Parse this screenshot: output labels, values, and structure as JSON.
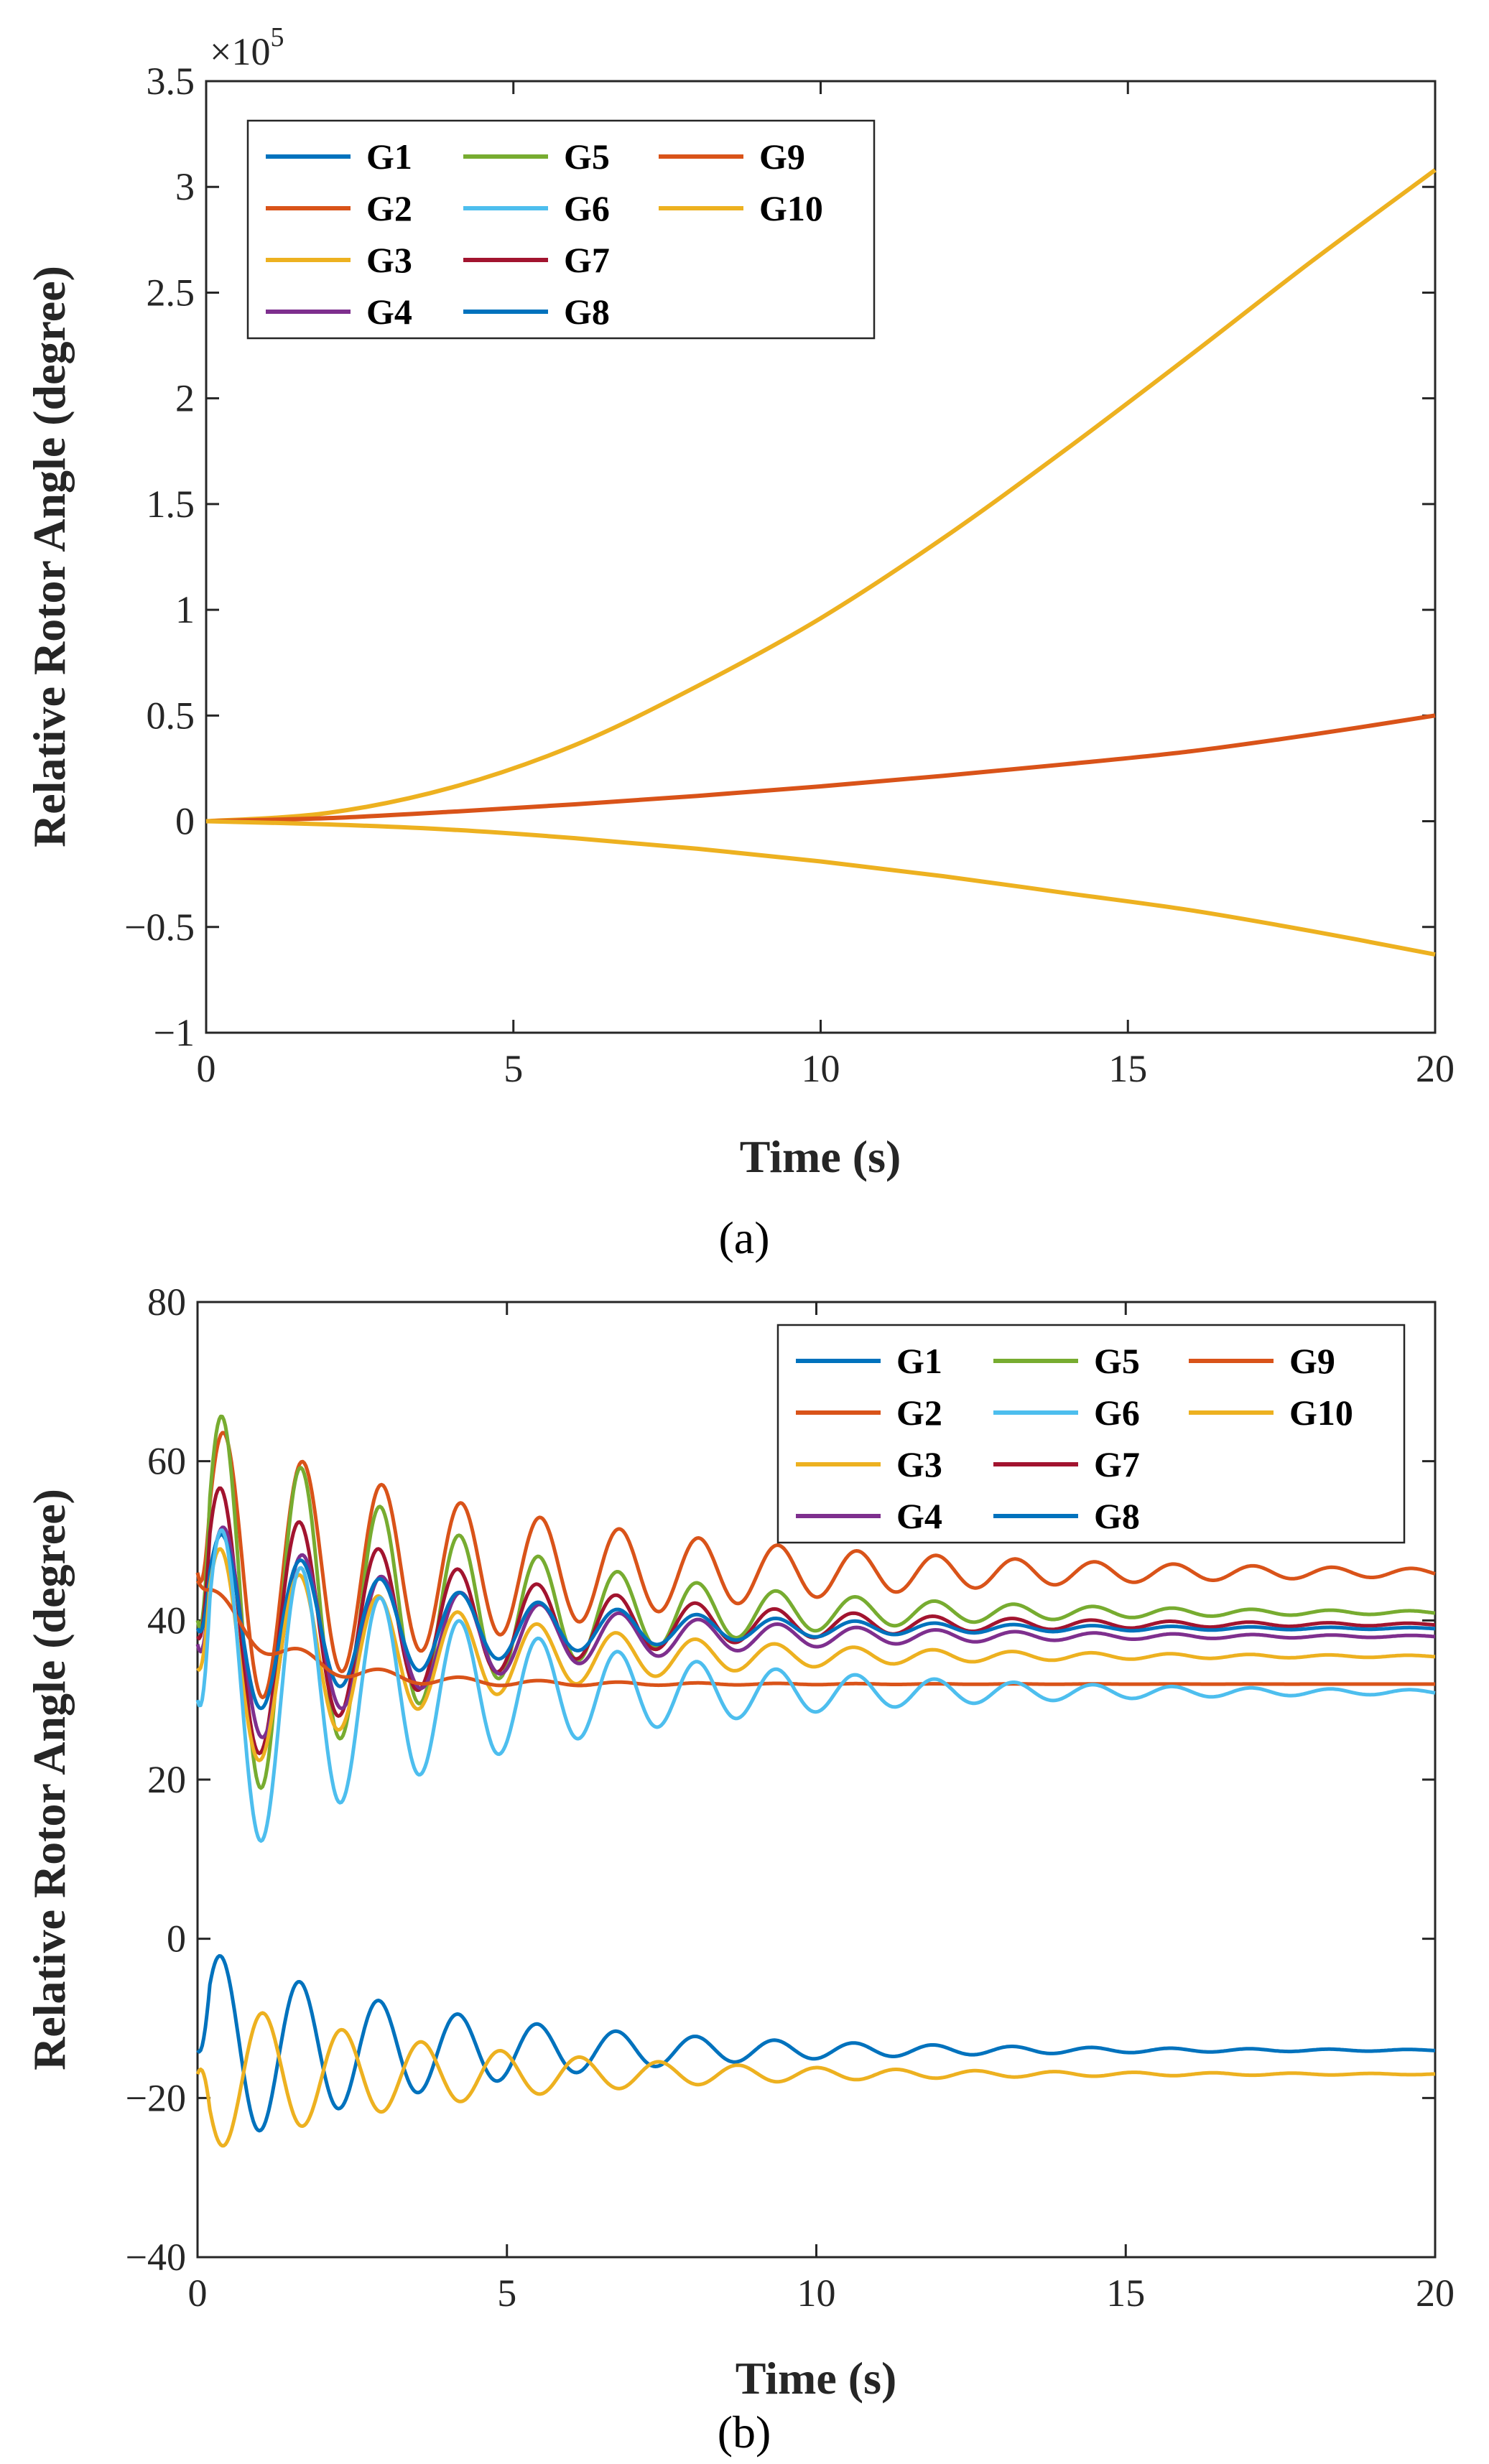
{
  "chart_data": [
    {
      "type": "line",
      "panel_label": "(a)",
      "xlabel": "Time (s)",
      "ylabel": "Relative Rotor Angle (degree)",
      "xlim": [
        0,
        20
      ],
      "ylim": [
        -1,
        3.5
      ],
      "y_multiplier": "×10",
      "y_exponent": "5",
      "xticks": [
        0,
        5,
        10,
        15,
        20
      ],
      "yticks": [
        -1,
        -0.5,
        0,
        0.5,
        1,
        1.5,
        2,
        2.5,
        3,
        3.5
      ],
      "xtick_labels": [
        "0",
        "5",
        "10",
        "15",
        "20"
      ],
      "ytick_labels": [
        "−1",
        "−0.5",
        "0",
        "0.5",
        "1",
        "1.5",
        "2",
        "2.5",
        "3",
        "3.5"
      ],
      "legend_position": "top-left",
      "legend": [
        "G1",
        "G5",
        "G9",
        "G2",
        "G6",
        "G10",
        "G3",
        "G7",
        "G4",
        "G8"
      ],
      "series": [
        {
          "name": "G3",
          "color": "#EDB120",
          "x": [
            0,
            2,
            4,
            6,
            8,
            10,
            12,
            14,
            16,
            18,
            20
          ],
          "values": [
            0,
            0.04,
            0.16,
            0.36,
            0.64,
            0.96,
            1.34,
            1.76,
            2.2,
            2.65,
            3.08
          ]
        },
        {
          "name": "G2",
          "color": "#D95319",
          "x": [
            0,
            2,
            4,
            6,
            8,
            10,
            12,
            14,
            16,
            18,
            20
          ],
          "values": [
            0,
            0.015,
            0.045,
            0.08,
            0.12,
            0.165,
            0.215,
            0.27,
            0.33,
            0.41,
            0.5
          ]
        },
        {
          "name": "G10",
          "color": "#EDB120",
          "x": [
            0,
            2,
            4,
            6,
            8,
            10,
            12,
            14,
            16,
            18,
            20
          ],
          "values": [
            0,
            -0.015,
            -0.04,
            -0.08,
            -0.13,
            -0.19,
            -0.26,
            -0.34,
            -0.42,
            -0.52,
            -0.63
          ]
        }
      ]
    },
    {
      "type": "line",
      "panel_label": "(b)",
      "xlabel": "Time (s)",
      "ylabel": "Relative Rotor Angle (degree)",
      "xlim": [
        0,
        20
      ],
      "ylim": [
        -40,
        80
      ],
      "xticks": [
        0,
        5,
        10,
        15,
        20
      ],
      "yticks": [
        -40,
        -20,
        0,
        20,
        40,
        60,
        80
      ],
      "xtick_labels": [
        "0",
        "5",
        "10",
        "15",
        "20"
      ],
      "ytick_labels": [
        "−40",
        "−20",
        "0",
        "20",
        "40",
        "60",
        "80"
      ],
      "legend_position": "top-right",
      "legend": [
        "G1",
        "G5",
        "G9",
        "G2",
        "G6",
        "G10",
        "G3",
        "G7",
        "G4",
        "G8"
      ],
      "oscillation_period_s": 1.28,
      "series": [
        {
          "name": "G9",
          "color": "#D95319",
          "initial": 46,
          "final": 46,
          "first_peak": 65,
          "envelope_decay_s": 5.5
        },
        {
          "name": "G5",
          "color": "#77AC30",
          "initial": 40,
          "final": 41,
          "first_peak": 68,
          "envelope_decay_s": 4.0
        },
        {
          "name": "G7",
          "color": "#A2142F",
          "initial": 38,
          "final": 39.5,
          "first_peak": 58,
          "envelope_decay_s": 4.0
        },
        {
          "name": "G4",
          "color": "#7E2F8E",
          "initial": 37,
          "final": 38,
          "first_peak": 53,
          "envelope_decay_s": 4.0
        },
        {
          "name": "G8",
          "color": "#0072BD",
          "initial": 39,
          "final": 39,
          "first_peak": 52,
          "envelope_decay_s": 4.0
        },
        {
          "name": "G3",
          "color": "#EDB120",
          "initial": 34,
          "final": 35.5,
          "first_peak": 50,
          "envelope_decay_s": 4.0
        },
        {
          "name": "G2",
          "color": "#D95319",
          "initial": 45,
          "final": 32,
          "first_peak": 47,
          "envelope_decay_s": 3.0
        },
        {
          "name": "G6",
          "color": "#4DBEEE",
          "initial": 30,
          "final": 31,
          "first_peak": 53,
          "envelope_decay_s": 4.5
        },
        {
          "name": "G1",
          "color": "#0072BD",
          "initial": -14,
          "final": -14,
          "first_peak": -1,
          "envelope_decay_s": 4.0
        },
        {
          "name": "G10",
          "color": "#EDB120",
          "initial": -17,
          "final": -17,
          "first_peak": -27,
          "envelope_decay_s": 4.0
        }
      ]
    }
  ]
}
